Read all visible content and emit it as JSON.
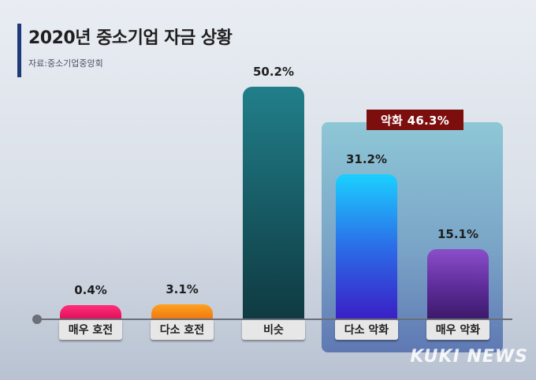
{
  "title": "2020년 중소기업 자금 상황",
  "source": "자료:중소기업중앙회",
  "highlight_label": "악화 46.3%",
  "watermark": "KUKI NEWS",
  "chart_data": {
    "type": "bar",
    "title": "2020년 중소기업 자금 상황",
    "categories": [
      "매우 호전",
      "다소 호전",
      "비슷",
      "다소 악화",
      "매우 악화"
    ],
    "values": [
      0.4,
      3.1,
      50.2,
      31.2,
      15.1
    ],
    "value_labels": [
      "0.4%",
      "3.1%",
      "50.2%",
      "31.2%",
      "15.1%"
    ],
    "unit": "%",
    "annotation": {
      "text": "악화 46.3%",
      "categories": [
        "다소 악화",
        "매우 악화"
      ],
      "value": 46.3
    },
    "ylim": [
      0,
      50.2
    ],
    "grid": false,
    "legend": false,
    "colors": [
      "#e0105a",
      "#f07a10",
      "#16555e",
      "#2b6ee8",
      "#5e2c9a"
    ]
  }
}
